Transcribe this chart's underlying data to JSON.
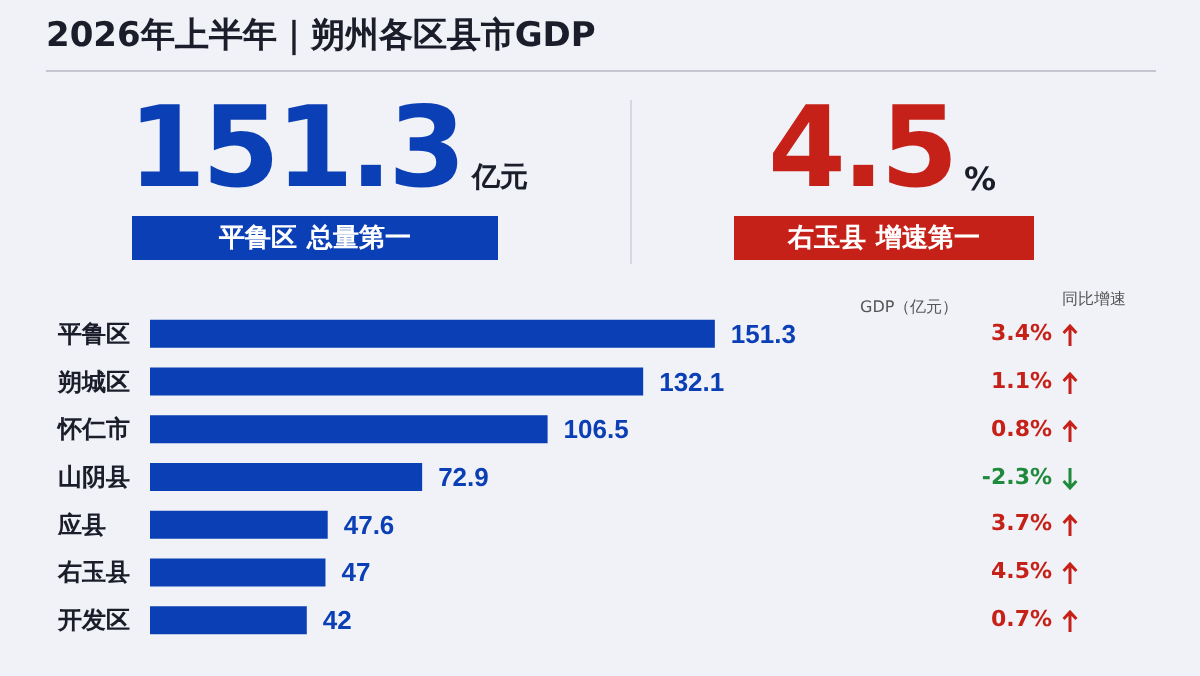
{
  "chart_data": {
    "type": "bar",
    "orientation": "horizontal",
    "title": "2026年上半年｜朔州各区县市GDP",
    "categories": [
      "平鲁区",
      "朔城区",
      "怀仁市",
      "山阴县",
      "应县",
      "右玉县",
      "开发区"
    ],
    "series": [
      {
        "name": "GDP（亿元）",
        "color": "#0b3fb5",
        "values": [
          151.3,
          132.1,
          106.5,
          72.9,
          47.6,
          47,
          42
        ]
      }
    ],
    "data_labels": true,
    "annotations": [
      "151.3",
      "亿元",
      "平鲁区 总量第一",
      "4.5",
      "%",
      "右玉县 增速第一",
      "同比增速",
      "3.4%",
      "1.1%",
      "0.8%",
      "-2.3%",
      "3.7%",
      "4.5%",
      "0.7%"
    ]
  }
}
